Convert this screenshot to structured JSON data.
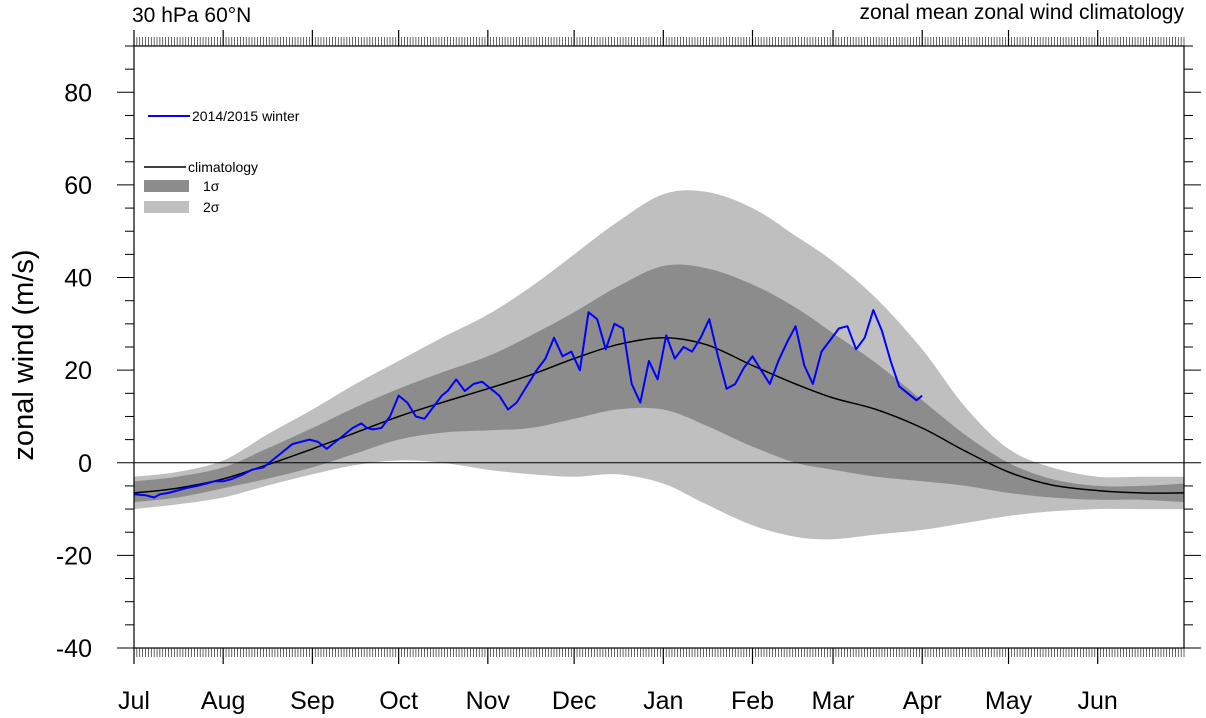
{
  "chart_data": {
    "type": "line",
    "title_left": "30 hPa 60°N",
    "title_right": "zonal mean zonal wind climatology",
    "ylabel": "zonal wind (m/s)",
    "xlabel": "",
    "ylim": [
      -40,
      90
    ],
    "xlim": [
      0,
      365
    ],
    "y_ticks": [
      80,
      60,
      40,
      20,
      0,
      -20,
      -40
    ],
    "month_ticks": [
      {
        "label": "Jul",
        "day": 0
      },
      {
        "label": "Aug",
        "day": 31
      },
      {
        "label": "Sep",
        "day": 62
      },
      {
        "label": "Oct",
        "day": 92
      },
      {
        "label": "Nov",
        "day": 123
      },
      {
        "label": "Dec",
        "day": 153
      },
      {
        "label": "Jan",
        "day": 184
      },
      {
        "label": "Feb",
        "day": 215
      },
      {
        "label": "Mar",
        "day": 243
      },
      {
        "label": "Apr",
        "day": 274
      },
      {
        "label": "May",
        "day": 304
      },
      {
        "label": "Jun",
        "day": 335
      }
    ],
    "zero_line": true,
    "legend": [
      {
        "label": "2014/2015 winter",
        "kind": "line",
        "color": "#0000ff"
      },
      {
        "label": "climatology",
        "kind": "line",
        "color": "#000000"
      },
      {
        "label": "1σ",
        "kind": "band",
        "color": "#8c8c8c"
      },
      {
        "label": "2σ",
        "kind": "band",
        "color": "#bfbfbf"
      }
    ],
    "climatology": {
      "x": [
        0,
        15,
        31,
        46,
        62,
        77,
        92,
        107,
        123,
        138,
        153,
        168,
        184,
        199,
        215,
        230,
        243,
        258,
        274,
        289,
        304,
        319,
        335,
        350,
        365
      ],
      "mean": [
        -6.5,
        -5.5,
        -3.5,
        -0.5,
        3,
        6.5,
        10,
        13,
        16,
        19,
        22.5,
        25.5,
        27,
        25.5,
        21,
        17,
        14,
        11.5,
        7.5,
        2.5,
        -2,
        -4.8,
        -6,
        -6.5,
        -6.5
      ],
      "sigma1_upper": [
        -4,
        -3,
        -1,
        3,
        7.5,
        12,
        16,
        19.5,
        23,
        27.5,
        32.5,
        38,
        42.5,
        42,
        38.5,
        33.5,
        28,
        21.5,
        13.5,
        6,
        0,
        -3.5,
        -5,
        -5,
        -4.5
      ],
      "sigma1_lower": [
        -8.5,
        -7.5,
        -5.5,
        -3.5,
        -1,
        2,
        5,
        6.5,
        7,
        7.5,
        9.5,
        11.5,
        11.5,
        8,
        3.5,
        0,
        -1.5,
        -3,
        -4,
        -5,
        -6.5,
        -7.5,
        -8,
        -8,
        -8.5
      ],
      "sigma2_upper": [
        -3,
        -2,
        0.5,
        6,
        11.5,
        17,
        22,
        27,
        32,
        38,
        45,
        52,
        58,
        58.5,
        55,
        49,
        43.5,
        35.5,
        24.5,
        12,
        3,
        -1,
        -3,
        -3,
        -3
      ],
      "sigma2_lower": [
        -10,
        -9,
        -7.5,
        -5,
        -2.5,
        -0.5,
        0.5,
        0,
        -1.5,
        -2.5,
        -3,
        -2.5,
        -4.5,
        -9,
        -13.5,
        -16,
        -16.5,
        -15.5,
        -14.5,
        -13,
        -11.5,
        -10.5,
        -10,
        -10,
        -10
      ]
    },
    "series": [
      {
        "name": "2014/2015 winter",
        "x": [
          0,
          4,
          7,
          9,
          12,
          15,
          18,
          22,
          25,
          28,
          31,
          34,
          38,
          41,
          45,
          49,
          52,
          55,
          58,
          61,
          64,
          67,
          70,
          73,
          76,
          79,
          81,
          83,
          86,
          89,
          92,
          95,
          98,
          101,
          104,
          107,
          109,
          112,
          115,
          118,
          121,
          124,
          127,
          130,
          133,
          137,
          140,
          143,
          146,
          149,
          152,
          155,
          158,
          161,
          164,
          167,
          170,
          173,
          176,
          179,
          182,
          185,
          188,
          191,
          194,
          197,
          200,
          203,
          206,
          209,
          212,
          215,
          218,
          221,
          224,
          227,
          230,
          233,
          236,
          239,
          242,
          245,
          248,
          251,
          254,
          257,
          260,
          263,
          266,
          269,
          272,
          274
        ],
        "values": [
          -6.8,
          -7,
          -7.5,
          -6.8,
          -6.5,
          -6,
          -5.5,
          -5,
          -4.5,
          -4,
          -4,
          -3.5,
          -2.5,
          -1.5,
          -1,
          1,
          2.5,
          4,
          4.5,
          5,
          4.5,
          3,
          4.5,
          6,
          7.5,
          8.5,
          7.5,
          7.2,
          7.5,
          10,
          14.5,
          13,
          10,
          9.5,
          12,
          14.5,
          15.5,
          18,
          15.5,
          17,
          17.5,
          16,
          14.5,
          11.5,
          13,
          17,
          20,
          22.5,
          27,
          23,
          24,
          20,
          32.5,
          31,
          24.5,
          30,
          29,
          17,
          13,
          22,
          18,
          27.5,
          22.5,
          25,
          24,
          27,
          31,
          23,
          16,
          17,
          20.5,
          23,
          20,
          17,
          22,
          26,
          29.5,
          21,
          17,
          24,
          26.5,
          29,
          29.5,
          24.5,
          27,
          33,
          28.5,
          22,
          16.5,
          15,
          13.5,
          14.5
        ]
      }
    ]
  }
}
